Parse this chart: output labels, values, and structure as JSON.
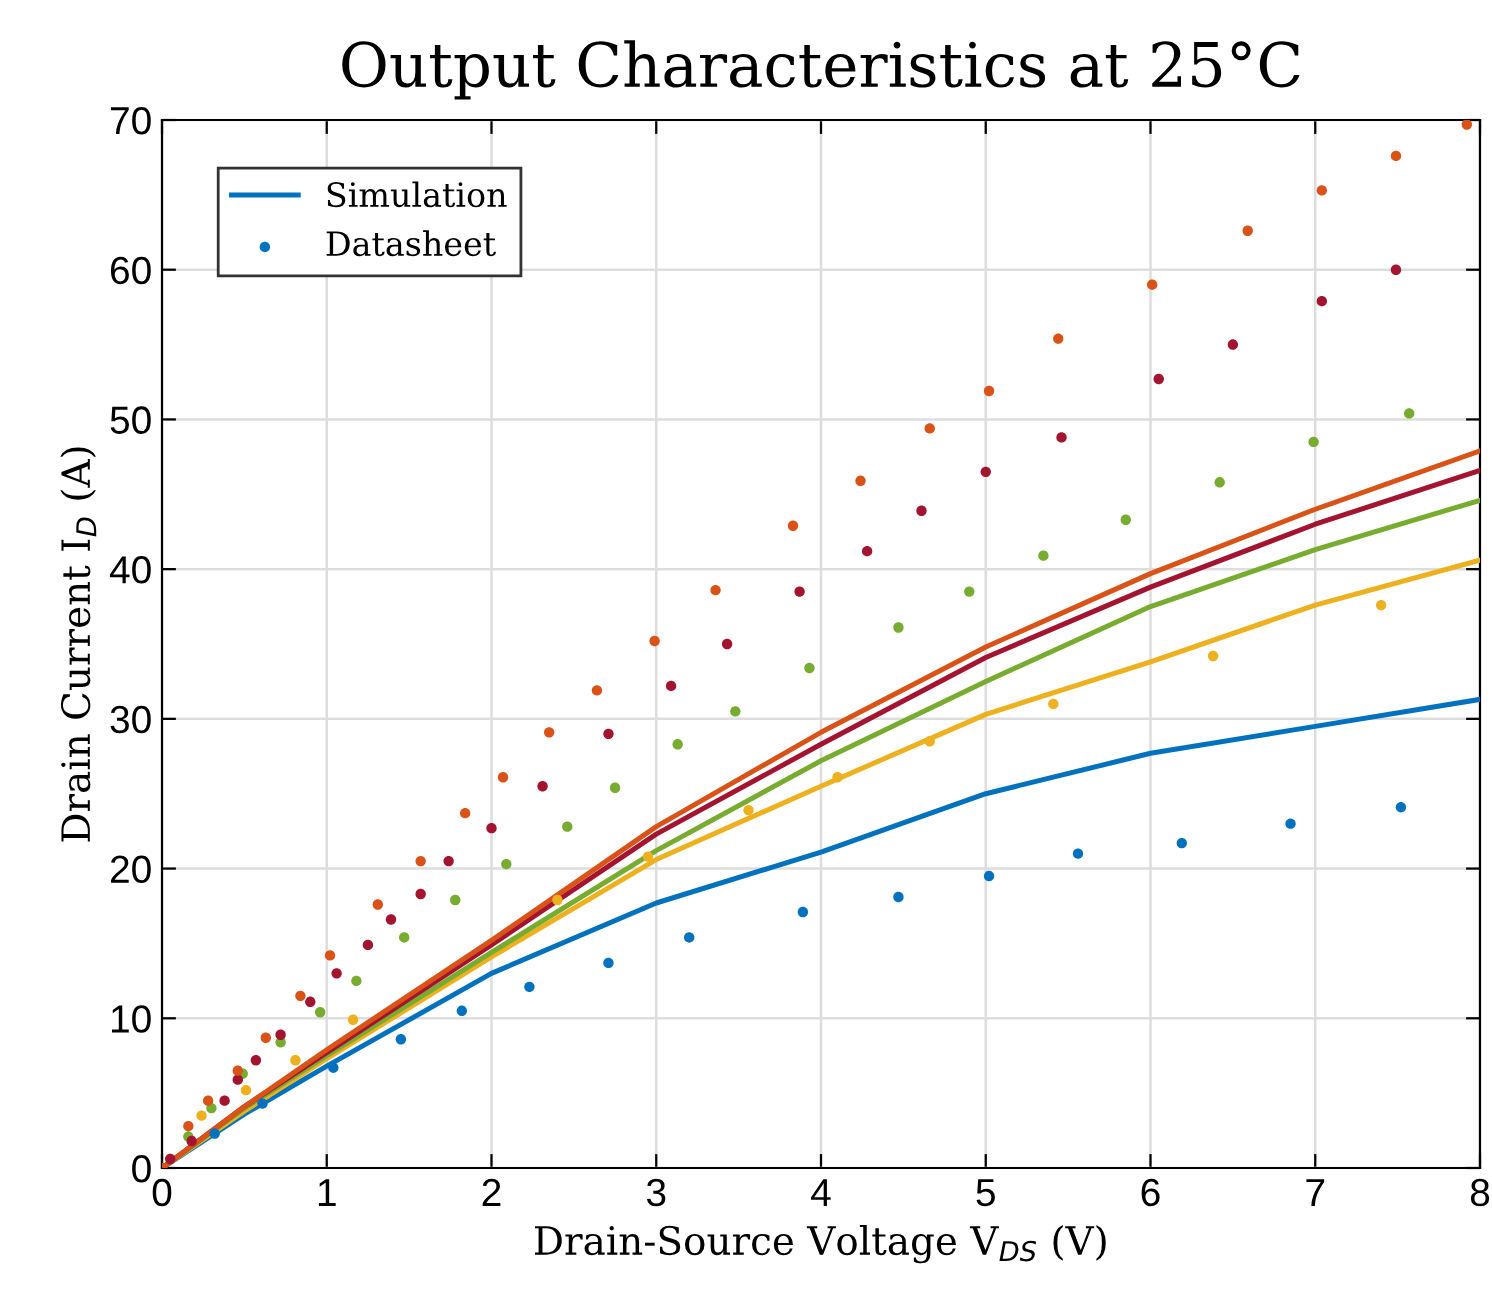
{
  "chart_data": {
    "type": "line",
    "title": "Output Characteristics at 25°C",
    "xlabel": "Drain-Source Voltage V$_{DS}$ (V)",
    "ylabel": "Drain Current I$_{D}$ (A)",
    "xlim": [
      0,
      8
    ],
    "ylim": [
      0,
      70
    ],
    "xticks": [
      0,
      1,
      2,
      3,
      4,
      5,
      6,
      7,
      8
    ],
    "yticks": [
      0,
      10,
      20,
      30,
      40,
      50,
      60,
      70
    ],
    "grid": true,
    "legend": "top left",
    "series": [
      {
        "name": "Simulation",
        "color": "#0072bd",
        "x": [
          0,
          0.5,
          1,
          2,
          3,
          4,
          5,
          6,
          7,
          8
        ],
        "values": [
          0,
          3.6,
          6.8,
          13.0,
          17.7,
          21.1,
          25.0,
          27.7,
          29.5,
          31.3
        ]
      },
      {
        "color": "#edb120",
        "x": [
          0,
          0.5,
          1,
          2,
          3,
          4,
          5,
          6,
          7,
          8
        ],
        "values": [
          0,
          3.8,
          7.3,
          14.1,
          20.6,
          25.5,
          30.3,
          33.8,
          37.6,
          40.6
        ]
      },
      {
        "color": "#77ac30",
        "x": [
          0,
          0.5,
          1,
          2,
          3,
          4,
          5,
          6,
          7,
          8
        ],
        "values": [
          0,
          4.0,
          7.5,
          14.4,
          21.2,
          27.2,
          32.5,
          37.5,
          41.3,
          44.6
        ]
      },
      {
        "color": "#a2142f",
        "x": [
          0,
          0.5,
          1,
          2,
          3,
          4,
          5,
          6,
          7,
          8
        ],
        "values": [
          0,
          4.1,
          7.7,
          14.9,
          22.3,
          28.3,
          34.1,
          38.8,
          43.0,
          46.6
        ]
      },
      {
        "color": "#d95319",
        "x": [
          0,
          0.5,
          1,
          2,
          3,
          4,
          5,
          6,
          7,
          8
        ],
        "values": [
          0,
          4.1,
          7.9,
          15.2,
          22.8,
          29.1,
          34.8,
          39.7,
          44.0,
          47.9
        ]
      },
      {
        "type": "scatter",
        "name": "Datasheet",
        "color": "#0072bd",
        "x": [
          0.32,
          0.61,
          1.04,
          1.45,
          1.82,
          2.23,
          2.71,
          3.2,
          3.89,
          4.47,
          5.02,
          5.56,
          6.19,
          6.85,
          7.52
        ],
        "values": [
          2.3,
          4.3,
          6.7,
          8.6,
          10.5,
          12.1,
          13.7,
          15.4,
          17.1,
          18.1,
          19.5,
          21.0,
          21.7,
          23.0,
          24.1
        ]
      },
      {
        "type": "scatter",
        "color": "#edb120",
        "x": [
          0.24,
          0.51,
          0.81,
          1.16,
          2.4,
          2.95,
          3.56,
          4.1,
          4.66,
          5.41,
          6.38,
          7.4
        ],
        "values": [
          3.5,
          5.2,
          7.2,
          9.9,
          17.9,
          20.8,
          23.9,
          26.1,
          28.5,
          31.0,
          34.2,
          37.6
        ]
      },
      {
        "type": "scatter",
        "color": "#77ac30",
        "x": [
          0.16,
          0.3,
          0.49,
          0.72,
          0.96,
          1.18,
          1.47,
          1.78,
          2.09,
          2.46,
          2.75,
          3.13,
          3.48,
          3.93,
          4.47,
          4.9,
          5.35,
          5.85,
          6.42,
          6.99,
          7.57
        ],
        "values": [
          2.1,
          4.0,
          6.3,
          8.4,
          10.4,
          12.5,
          15.4,
          17.9,
          20.3,
          22.8,
          25.4,
          28.3,
          30.5,
          33.4,
          36.1,
          38.5,
          40.9,
          43.3,
          45.8,
          48.5,
          50.4
        ]
      },
      {
        "type": "scatter",
        "color": "#a2142f",
        "x": [
          0.05,
          0.18,
          0.38,
          0.46,
          0.57,
          0.72,
          0.9,
          1.06,
          1.25,
          1.39,
          1.57,
          1.74,
          2.0,
          2.31,
          2.71,
          3.09,
          3.43,
          3.87,
          4.28,
          4.61,
          5.0,
          5.46,
          6.05,
          6.5,
          7.04,
          7.49
        ],
        "values": [
          0.6,
          1.8,
          4.5,
          5.9,
          7.2,
          8.9,
          11.1,
          13.0,
          14.9,
          16.6,
          18.3,
          20.5,
          22.7,
          25.5,
          29.0,
          32.2,
          35.0,
          38.5,
          41.2,
          43.9,
          46.5,
          48.8,
          52.7,
          55.0,
          57.9,
          60.0
        ]
      },
      {
        "type": "scatter",
        "color": "#d95319",
        "x": [
          0,
          0.16,
          0.28,
          0.46,
          0.63,
          0.84,
          1.02,
          1.31,
          1.57,
          1.84,
          2.07,
          2.35,
          2.64,
          2.99,
          3.36,
          3.83,
          4.24,
          4.66,
          5.02,
          5.44,
          6.01,
          6.59,
          7.04,
          7.49,
          7.92
        ],
        "values": [
          0,
          2.8,
          4.5,
          6.5,
          8.7,
          11.5,
          14.2,
          17.6,
          20.5,
          23.7,
          26.1,
          29.1,
          31.9,
          35.2,
          38.6,
          42.9,
          45.9,
          49.4,
          51.9,
          55.4,
          59.0,
          62.6,
          65.3,
          67.6,
          69.7
        ]
      }
    ]
  }
}
